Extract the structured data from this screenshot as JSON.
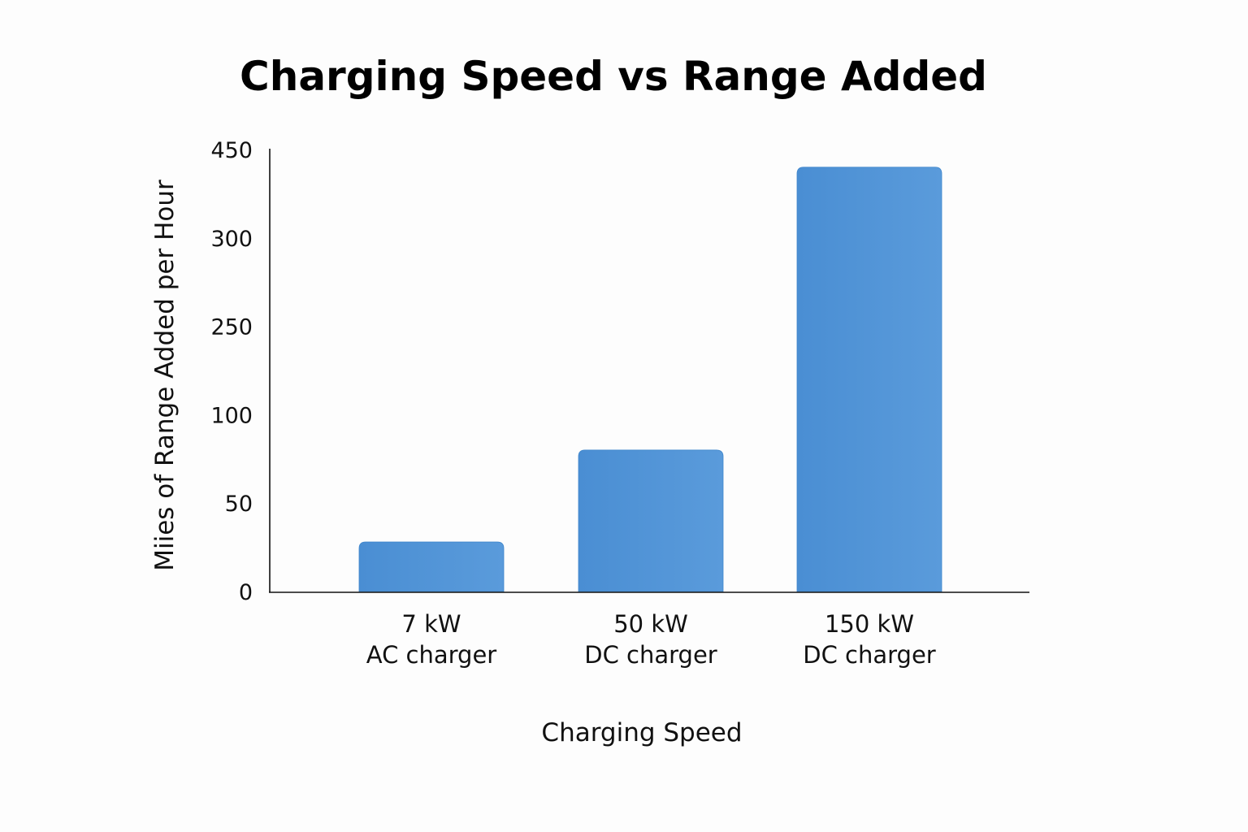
{
  "chart_data": {
    "type": "bar",
    "title": "Charging Speed vs Range Added",
    "xlabel": "Charging Speed",
    "ylabel": "Miies of Range Added per Hour",
    "categories": [
      [
        "7 kW",
        "AC charger"
      ],
      [
        "50 kW",
        "DC charger"
      ],
      [
        "150 kW",
        "DC charger"
      ]
    ],
    "values": [
      28,
      80,
      420
    ],
    "y_tick_labels": [
      "0",
      "50",
      "100",
      "250",
      "300",
      "450"
    ],
    "ylim": [
      0,
      450
    ],
    "grid": false,
    "legend": "none",
    "bar_color": "#5597d7"
  }
}
